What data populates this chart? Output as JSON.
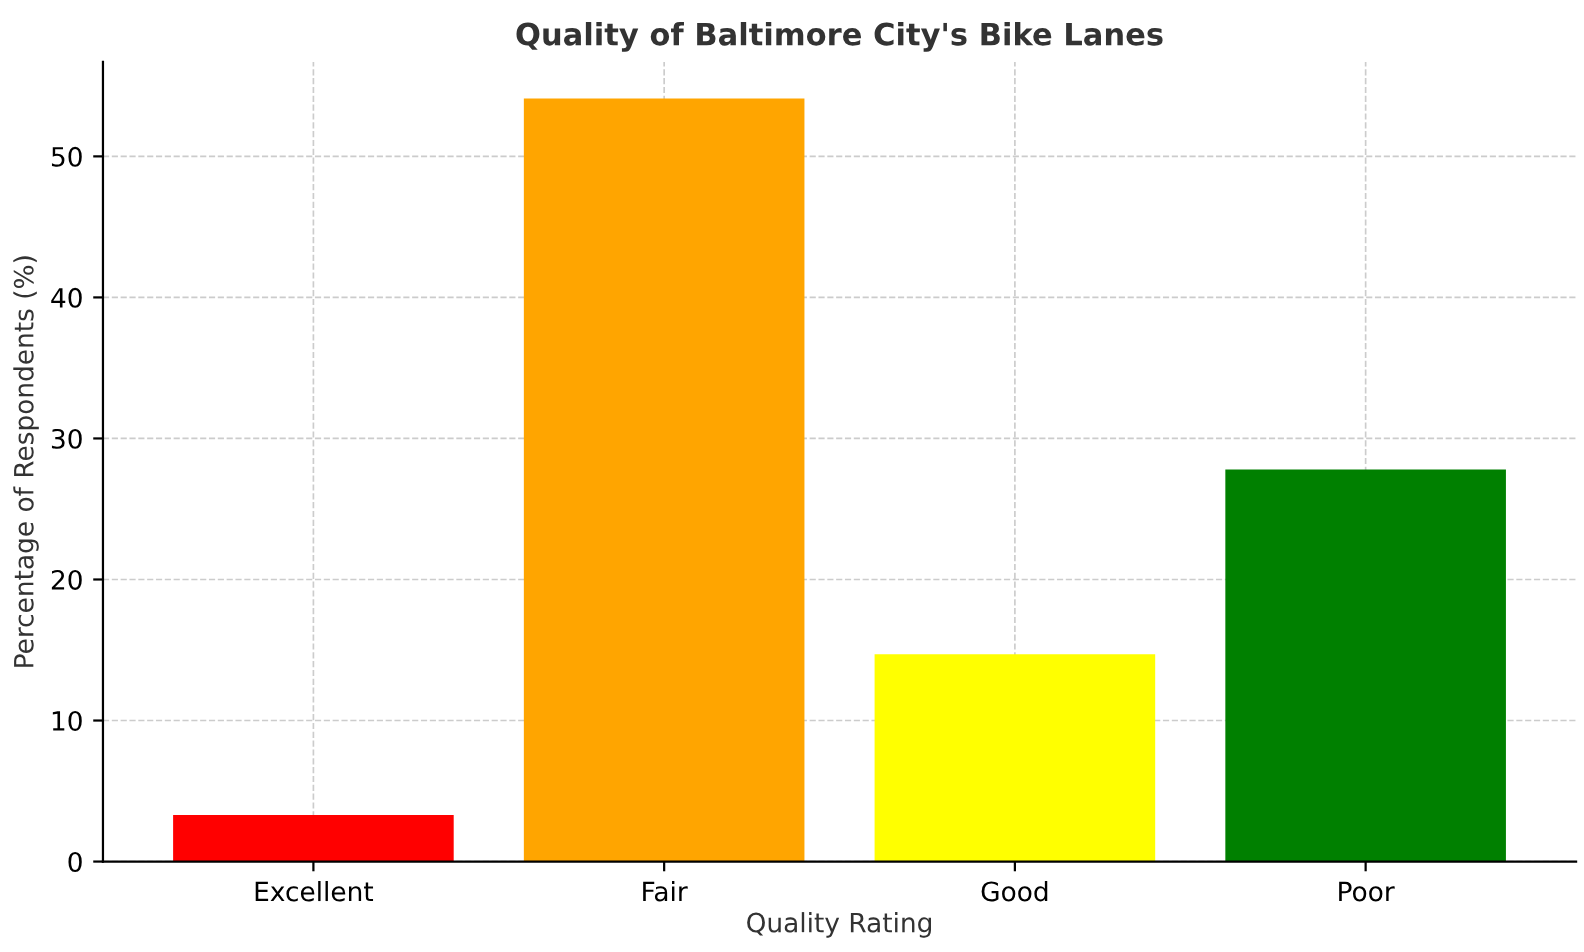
{
  "chart_data": {
    "type": "bar",
    "title": "Quality of Baltimore City's Bike Lanes",
    "xlabel": "Quality Rating",
    "ylabel": "Percentage of Respondents (%)",
    "categories": [
      "Excellent",
      "Fair",
      "Good",
      "Poor"
    ],
    "values": [
      3.3,
      54.1,
      14.7,
      27.8
    ],
    "colors": [
      "#ff0000",
      "#ffa500",
      "#ffff00",
      "#008000"
    ],
    "ylim": [
      0,
      56.7
    ],
    "yticks": [
      0,
      10,
      20,
      30,
      40,
      50
    ],
    "grid": true
  }
}
